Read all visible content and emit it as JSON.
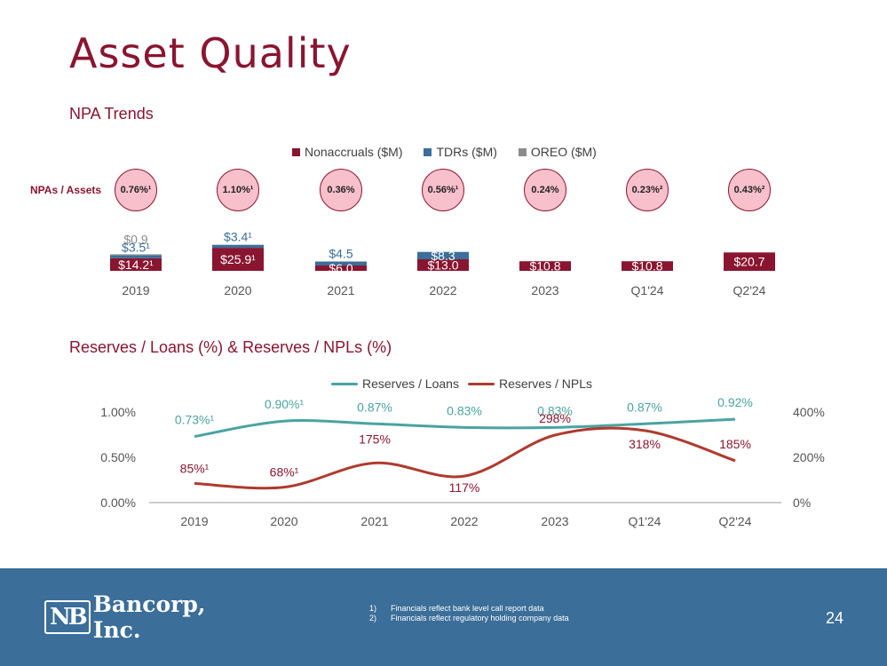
{
  "title": "Asset Quality",
  "npa_section_title": "NPA Trends",
  "reserves_section_title": "Reserves / Loans (%) & Reserves / NPLs (%)",
  "npa_ratio_label": "NPAs / Assets",
  "colors": {
    "nonaccruals": "#8a1530",
    "tdrs": "#3b6e99",
    "oreo": "#8c8c8c",
    "reserves_loans": "#4aa3a2",
    "reserves_npls": "#b03a2e",
    "brand_red": "#8a1530",
    "footer": "#3b6e99"
  },
  "npa_ratios": [
    "0.76%¹",
    "1.10%¹",
    "0.36%",
    "0.56%¹",
    "0.24%",
    "0.23%²",
    "0.43%²"
  ],
  "chart_data": [
    {
      "type": "bar",
      "stacked": true,
      "title": "NPA Trends",
      "categories": [
        "2019",
        "2020",
        "2021",
        "2022",
        "2023",
        "Q1'24",
        "Q2'24"
      ],
      "legend": [
        "Nonaccruals ($M)",
        "TDRs ($M)",
        "OREO ($M)"
      ],
      "series": [
        {
          "name": "Nonaccruals ($M)",
          "values": [
            14.2,
            25.9,
            6.0,
            13.0,
            10.8,
            10.8,
            20.7
          ],
          "labels": [
            "$14.2¹",
            "$25.9¹",
            "$6.0",
            "$13.0",
            "$10.8",
            "$10.8",
            "$20.7"
          ]
        },
        {
          "name": "TDRs ($M)",
          "values": [
            3.5,
            3.4,
            4.5,
            8.3,
            0,
            0,
            0
          ],
          "labels": [
            "$3.5¹",
            "$3.4¹",
            "$4.5",
            "$8.3",
            "",
            "",
            ""
          ]
        },
        {
          "name": "OREO ($M)",
          "values": [
            0.9,
            0,
            0,
            0,
            0,
            0,
            0
          ],
          "labels": [
            "$0.9",
            "",
            "",
            "",
            "",
            "",
            ""
          ]
        }
      ],
      "ylim": [
        0,
        30
      ]
    },
    {
      "type": "line",
      "title": "Reserves / Loans (%) & Reserves / NPLs (%)",
      "categories": [
        "2019",
        "2020",
        "2021",
        "2022",
        "2023",
        "Q1'24",
        "Q2'24"
      ],
      "series": [
        {
          "name": "Reserves / Loans",
          "axis": "left",
          "values": [
            0.73,
            0.9,
            0.87,
            0.83,
            0.83,
            0.87,
            0.92
          ],
          "labels": [
            "0.73%¹",
            "0.90%¹",
            "0.87%",
            "0.83%",
            "0.83%",
            "0.87%",
            "0.92%"
          ]
        },
        {
          "name": "Reserves / NPLs",
          "axis": "right",
          "values": [
            85,
            68,
            175,
            117,
            298,
            318,
            185
          ],
          "labels": [
            "85%¹",
            "68%¹",
            "175%",
            "117%",
            "298%",
            "318%",
            "185%"
          ]
        }
      ],
      "y_left": {
        "range": [
          0,
          1.0
        ],
        "ticks": [
          "0.00%",
          "0.50%",
          "1.00%"
        ]
      },
      "y_right": {
        "range": [
          0,
          400
        ],
        "ticks": [
          "0%",
          "200%",
          "400%"
        ]
      }
    }
  ],
  "footer": {
    "logo_mark": "NB",
    "logo_name": "Bancorp, Inc.",
    "footnotes": [
      {
        "num": "1)",
        "text": "Financials reflect bank level call report data"
      },
      {
        "num": "2)",
        "text": "Financials reflect regulatory holding company data"
      }
    ],
    "page_number": "24"
  }
}
